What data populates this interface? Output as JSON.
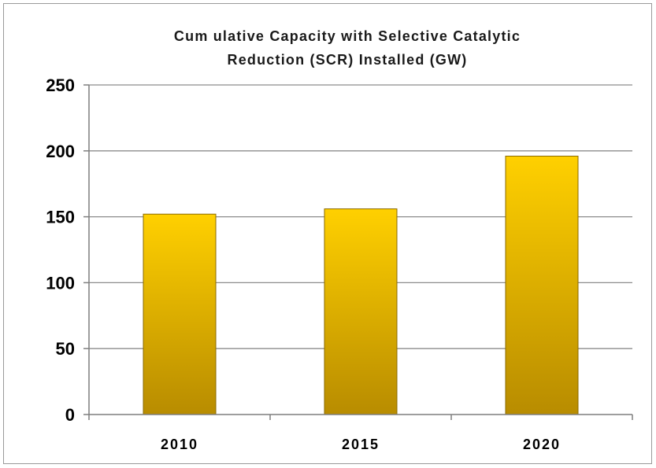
{
  "chart_data": {
    "type": "bar",
    "title": "Cumulative Capacity with Selective Catalytic Reduction (SCR) Installed (GW)",
    "title_lines": [
      "Cum ulative Capacity with Selective Catalytic",
      "Reduction (SCR) Installed (GW)"
    ],
    "categories": [
      "2010",
      "2015",
      "2020"
    ],
    "values": [
      152,
      156,
      196
    ],
    "ylim": [
      0,
      250
    ],
    "yticks": [
      0,
      50,
      100,
      150,
      200,
      250
    ],
    "xlabel": "",
    "ylabel": "",
    "grid": true,
    "legend": "none",
    "colors": {
      "bar_top": "#ffd000",
      "bar_bottom": "#b88c00",
      "bar_stroke": "#8a6a00",
      "gridline": "#8c8c8c",
      "axis": "#7f7f7f"
    }
  }
}
